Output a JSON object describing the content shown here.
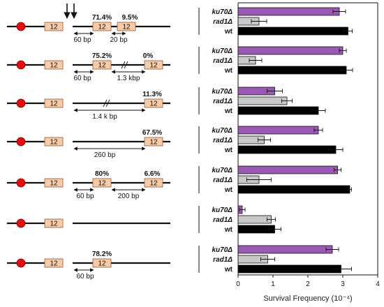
{
  "constructs": [
    {
      "repeat_label": "12",
      "percent_a": "71.4%",
      "percent_b": "9.5%",
      "dim_a": "60 bp",
      "dim_b": "20 bp"
    },
    {
      "repeat_label": "12",
      "percent_a": "75.2%",
      "percent_b": "0%",
      "dim_a": "60 bp",
      "dim_b": "1.3 kbp"
    },
    {
      "repeat_label": "12",
      "percent_b": "11.3%",
      "dim_a": "1.4 k bp"
    },
    {
      "repeat_label": "12",
      "percent_b": "67.5%",
      "dim_a": "260 bp"
    },
    {
      "repeat_label": "12",
      "percent_a": "80%",
      "percent_b": "6.6%",
      "dim_a": "60 bp",
      "dim_b": "200 bp"
    },
    {
      "repeat_label": "12"
    },
    {
      "repeat_label": "12",
      "percent_a": "78.2%",
      "dim_a": "60 bp"
    }
  ],
  "chart_data": {
    "type": "bar",
    "orientation": "horizontal",
    "xlabel": "Survival Frequency (10⁻⁴)",
    "xlim": [
      0,
      4
    ],
    "xticks": [
      "0",
      "1",
      "2",
      "3",
      "4"
    ],
    "strain_labels": [
      "ku70Δ",
      "rad1Δ",
      "wt"
    ],
    "colors": {
      "ku70Δ": "#9b59b6",
      "rad1Δ": "#c8c8c8",
      "wt": "#000000"
    },
    "groups": [
      {
        "values": [
          2.9,
          0.6,
          3.15
        ],
        "errors": [
          0.18,
          0.22,
          0.12
        ]
      },
      {
        "values": [
          3.0,
          0.5,
          3.1
        ],
        "errors": [
          0.1,
          0.18,
          0.18
        ]
      },
      {
        "values": [
          1.05,
          1.4,
          2.3
        ],
        "errors": [
          0.22,
          0.15,
          0.2
        ]
      },
      {
        "values": [
          2.3,
          0.75,
          2.8
        ],
        "errors": [
          0.12,
          0.18,
          0.2
        ]
      },
      {
        "values": [
          2.85,
          0.6,
          3.2
        ],
        "errors": [
          0.1,
          0.35,
          0.05
        ]
      },
      {
        "values": [
          0.12,
          0.95,
          1.05
        ],
        "errors": [
          0.08,
          0.12,
          0.18
        ]
      },
      {
        "values": [
          2.7,
          0.85,
          2.95
        ],
        "errors": [
          0.18,
          0.2,
          0.3
        ]
      }
    ]
  }
}
